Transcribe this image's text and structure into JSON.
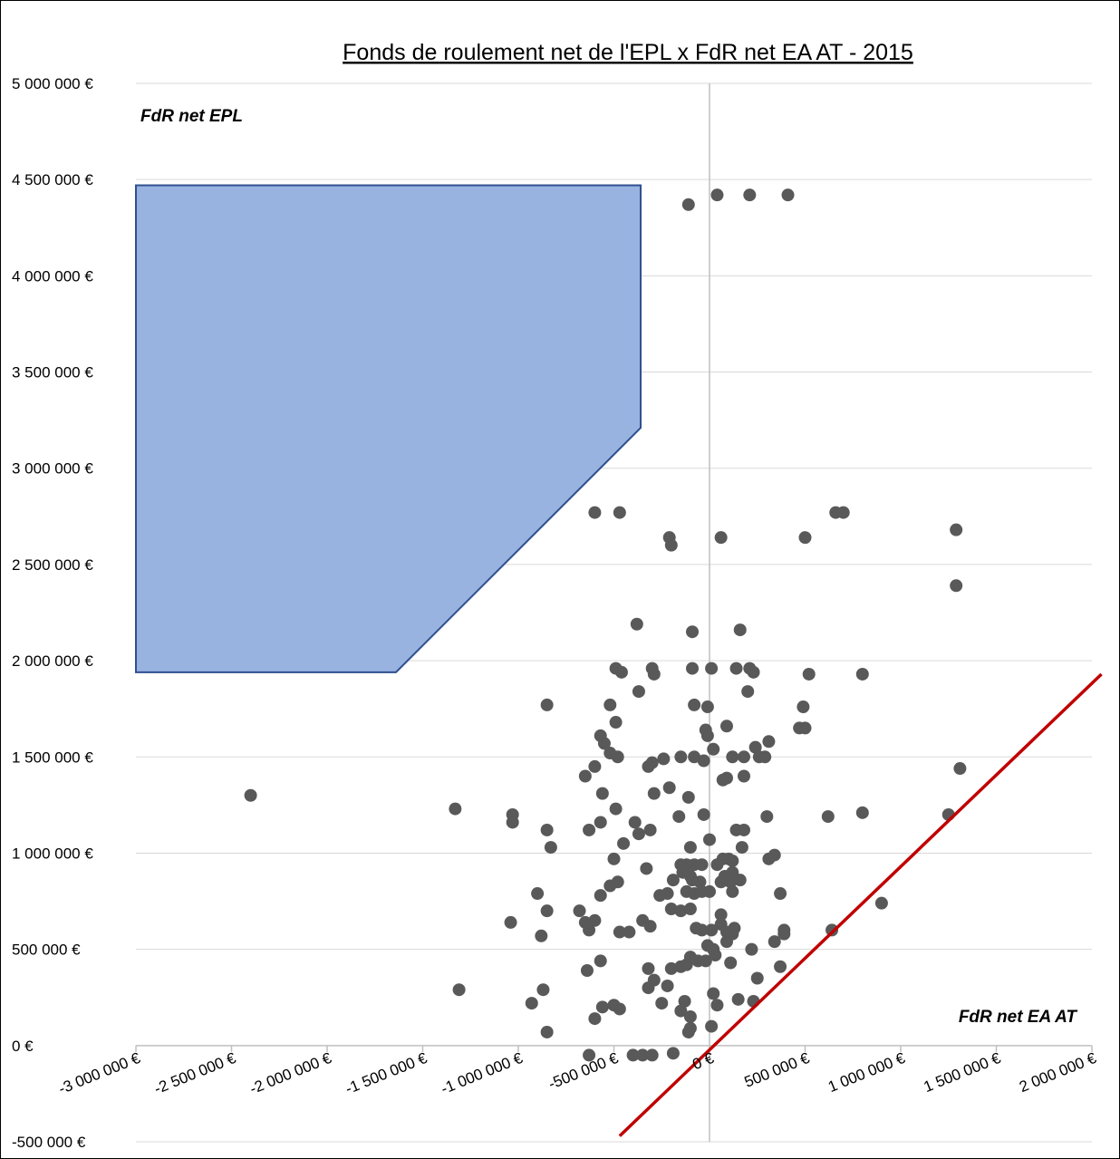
{
  "chart_data": {
    "type": "scatter",
    "title": "Fonds de roulement net de l'EPL x FdR net EA AT - 2015",
    "xlabel": "FdR net EA AT",
    "ylabel": "FdR net EPL",
    "xlim": [
      -3000000,
      2000000
    ],
    "ylim": [
      -500000,
      5000000
    ],
    "x_ticks": [
      -3000000,
      -2500000,
      -2000000,
      -1500000,
      -1000000,
      -500000,
      0,
      500000,
      1000000,
      1500000,
      2000000
    ],
    "x_tick_labels": [
      "-3 000 000 €",
      "-2 500 000 €",
      "-2 000 000 €",
      "-1 500 000 €",
      "-1 000 000 €",
      "-500 000 €",
      "0 €",
      "500 000 €",
      "1 000 000 €",
      "1 500 000 €",
      "2 000 000 €"
    ],
    "y_ticks": [
      5000000,
      4500000,
      4000000,
      3500000,
      3000000,
      2500000,
      2000000,
      1500000,
      1000000,
      500000,
      0,
      -500000
    ],
    "y_tick_labels": [
      "5 000 000 €",
      "4 500 000 €",
      "4 000 000 €",
      "3 500 000 €",
      "3 000 000 €",
      "2 500 000 €",
      "2 000 000 €",
      "1 500 000 €",
      "1 000 000 €",
      "500 000 €",
      "0 €",
      "-500 000 €"
    ],
    "grid": "horizontal",
    "colors": {
      "points": "#595959",
      "zone_fill": "#98b3e0",
      "zone_stroke": "#2f4f8f",
      "line": "#c00000",
      "grid": "#d9d9d9",
      "zero_axis": "#bfbfbf"
    },
    "highlight_zone": [
      [
        -3000000,
        4470000
      ],
      [
        -360000,
        4470000
      ],
      [
        -360000,
        3210000
      ],
      [
        -1640000,
        1940000
      ],
      [
        -3000000,
        1940000
      ]
    ],
    "reference_line": [
      [
        -470000,
        -470000
      ],
      [
        2050000,
        1930000
      ]
    ],
    "points": [
      [
        -2400000,
        1300000
      ],
      [
        -1310000,
        290000
      ],
      [
        -1330000,
        1230000
      ],
      [
        -110000,
        4370000
      ],
      [
        40000,
        4420000
      ],
      [
        210000,
        4420000
      ],
      [
        410000,
        4420000
      ],
      [
        -600000,
        2770000
      ],
      [
        -470000,
        2770000
      ],
      [
        -210000,
        2640000
      ],
      [
        -200000,
        2600000
      ],
      [
        60000,
        2640000
      ],
      [
        500000,
        2640000
      ],
      [
        660000,
        2770000
      ],
      [
        700000,
        2770000
      ],
      [
        1290000,
        2680000
      ],
      [
        1290000,
        2390000
      ],
      [
        -380000,
        2190000
      ],
      [
        -90000,
        2150000
      ],
      [
        160000,
        2160000
      ],
      [
        -300000,
        1960000
      ],
      [
        -290000,
        1930000
      ],
      [
        -490000,
        1960000
      ],
      [
        -460000,
        1940000
      ],
      [
        -90000,
        1960000
      ],
      [
        10000,
        1960000
      ],
      [
        140000,
        1960000
      ],
      [
        210000,
        1960000
      ],
      [
        230000,
        1940000
      ],
      [
        520000,
        1930000
      ],
      [
        800000,
        1930000
      ],
      [
        -370000,
        1840000
      ],
      [
        200000,
        1840000
      ],
      [
        -850000,
        1770000
      ],
      [
        -520000,
        1770000
      ],
      [
        -80000,
        1770000
      ],
      [
        -10000,
        1760000
      ],
      [
        490000,
        1760000
      ],
      [
        -490000,
        1680000
      ],
      [
        90000,
        1660000
      ],
      [
        470000,
        1650000
      ],
      [
        500000,
        1650000
      ],
      [
        -20000,
        1640000
      ],
      [
        -570000,
        1610000
      ],
      [
        -10000,
        1610000
      ],
      [
        -550000,
        1570000
      ],
      [
        20000,
        1540000
      ],
      [
        310000,
        1580000
      ],
      [
        240000,
        1550000
      ],
      [
        -520000,
        1520000
      ],
      [
        -480000,
        1500000
      ],
      [
        -80000,
        1500000
      ],
      [
        120000,
        1500000
      ],
      [
        180000,
        1500000
      ],
      [
        260000,
        1500000
      ],
      [
        290000,
        1500000
      ],
      [
        -150000,
        1500000
      ],
      [
        -240000,
        1490000
      ],
      [
        -30000,
        1480000
      ],
      [
        -300000,
        1470000
      ],
      [
        -320000,
        1450000
      ],
      [
        -650000,
        1400000
      ],
      [
        180000,
        1400000
      ],
      [
        90000,
        1390000
      ],
      [
        70000,
        1380000
      ],
      [
        -600000,
        1450000
      ],
      [
        -210000,
        1340000
      ],
      [
        -560000,
        1310000
      ],
      [
        -290000,
        1310000
      ],
      [
        -110000,
        1290000
      ],
      [
        1310000,
        1440000
      ],
      [
        -1030000,
        1200000
      ],
      [
        -1030000,
        1160000
      ],
      [
        -490000,
        1230000
      ],
      [
        -570000,
        1160000
      ],
      [
        -390000,
        1160000
      ],
      [
        -160000,
        1190000
      ],
      [
        -30000,
        1200000
      ],
      [
        300000,
        1190000
      ],
      [
        620000,
        1190000
      ],
      [
        800000,
        1210000
      ],
      [
        1250000,
        1200000
      ],
      [
        -850000,
        1120000
      ],
      [
        -630000,
        1120000
      ],
      [
        -370000,
        1100000
      ],
      [
        -310000,
        1120000
      ],
      [
        140000,
        1120000
      ],
      [
        180000,
        1120000
      ],
      [
        -830000,
        1030000
      ],
      [
        -450000,
        1050000
      ],
      [
        -100000,
        1030000
      ],
      [
        0,
        1070000
      ],
      [
        170000,
        1030000
      ],
      [
        340000,
        990000
      ],
      [
        -500000,
        970000
      ],
      [
        -150000,
        940000
      ],
      [
        -120000,
        940000
      ],
      [
        -80000,
        940000
      ],
      [
        -40000,
        940000
      ],
      [
        40000,
        940000
      ],
      [
        70000,
        970000
      ],
      [
        100000,
        970000
      ],
      [
        120000,
        960000
      ],
      [
        310000,
        970000
      ],
      [
        -140000,
        900000
      ],
      [
        -100000,
        880000
      ],
      [
        80000,
        880000
      ],
      [
        120000,
        900000
      ],
      [
        -330000,
        920000
      ],
      [
        -190000,
        860000
      ],
      [
        -90000,
        860000
      ],
      [
        -50000,
        850000
      ],
      [
        60000,
        850000
      ],
      [
        110000,
        850000
      ],
      [
        160000,
        860000
      ],
      [
        -520000,
        830000
      ],
      [
        -480000,
        850000
      ],
      [
        -900000,
        790000
      ],
      [
        -570000,
        780000
      ],
      [
        -260000,
        780000
      ],
      [
        -220000,
        790000
      ],
      [
        -120000,
        800000
      ],
      [
        -80000,
        790000
      ],
      [
        -40000,
        800000
      ],
      [
        0,
        800000
      ],
      [
        120000,
        800000
      ],
      [
        370000,
        790000
      ],
      [
        -1040000,
        640000
      ],
      [
        -880000,
        570000
      ],
      [
        -850000,
        700000
      ],
      [
        -680000,
        700000
      ],
      [
        -650000,
        640000
      ],
      [
        -630000,
        600000
      ],
      [
        -600000,
        650000
      ],
      [
        -470000,
        590000
      ],
      [
        -420000,
        590000
      ],
      [
        -350000,
        650000
      ],
      [
        -310000,
        620000
      ],
      [
        -200000,
        710000
      ],
      [
        -150000,
        700000
      ],
      [
        -100000,
        710000
      ],
      [
        -70000,
        610000
      ],
      [
        -40000,
        600000
      ],
      [
        10000,
        600000
      ],
      [
        60000,
        630000
      ],
      [
        90000,
        590000
      ],
      [
        120000,
        580000
      ],
      [
        130000,
        610000
      ],
      [
        60000,
        680000
      ],
      [
        340000,
        540000
      ],
      [
        390000,
        580000
      ],
      [
        390000,
        600000
      ],
      [
        640000,
        600000
      ],
      [
        -870000,
        290000
      ],
      [
        -930000,
        220000
      ],
      [
        -850000,
        70000
      ],
      [
        -640000,
        390000
      ],
      [
        -570000,
        440000
      ],
      [
        -560000,
        200000
      ],
      [
        -500000,
        210000
      ],
      [
        -470000,
        190000
      ],
      [
        -320000,
        400000
      ],
      [
        -320000,
        300000
      ],
      [
        -290000,
        340000
      ],
      [
        -250000,
        220000
      ],
      [
        -220000,
        310000
      ],
      [
        -200000,
        400000
      ],
      [
        -150000,
        410000
      ],
      [
        -120000,
        420000
      ],
      [
        -100000,
        460000
      ],
      [
        -60000,
        440000
      ],
      [
        -20000,
        440000
      ],
      [
        -10000,
        520000
      ],
      [
        20000,
        500000
      ],
      [
        30000,
        470000
      ],
      [
        90000,
        540000
      ],
      [
        110000,
        430000
      ],
      [
        220000,
        500000
      ],
      [
        230000,
        230000
      ],
      [
        250000,
        350000
      ],
      [
        370000,
        410000
      ],
      [
        150000,
        240000
      ],
      [
        20000,
        270000
      ],
      [
        40000,
        210000
      ],
      [
        10000,
        100000
      ],
      [
        -130000,
        230000
      ],
      [
        -150000,
        180000
      ],
      [
        -100000,
        150000
      ],
      [
        -100000,
        90000
      ],
      [
        -110000,
        70000
      ],
      [
        900000,
        740000
      ],
      [
        -630000,
        -50000
      ],
      [
        -400000,
        -50000
      ],
      [
        -350000,
        -50000
      ],
      [
        -300000,
        -50000
      ],
      [
        -190000,
        -40000
      ],
      [
        -600000,
        140000
      ]
    ]
  }
}
